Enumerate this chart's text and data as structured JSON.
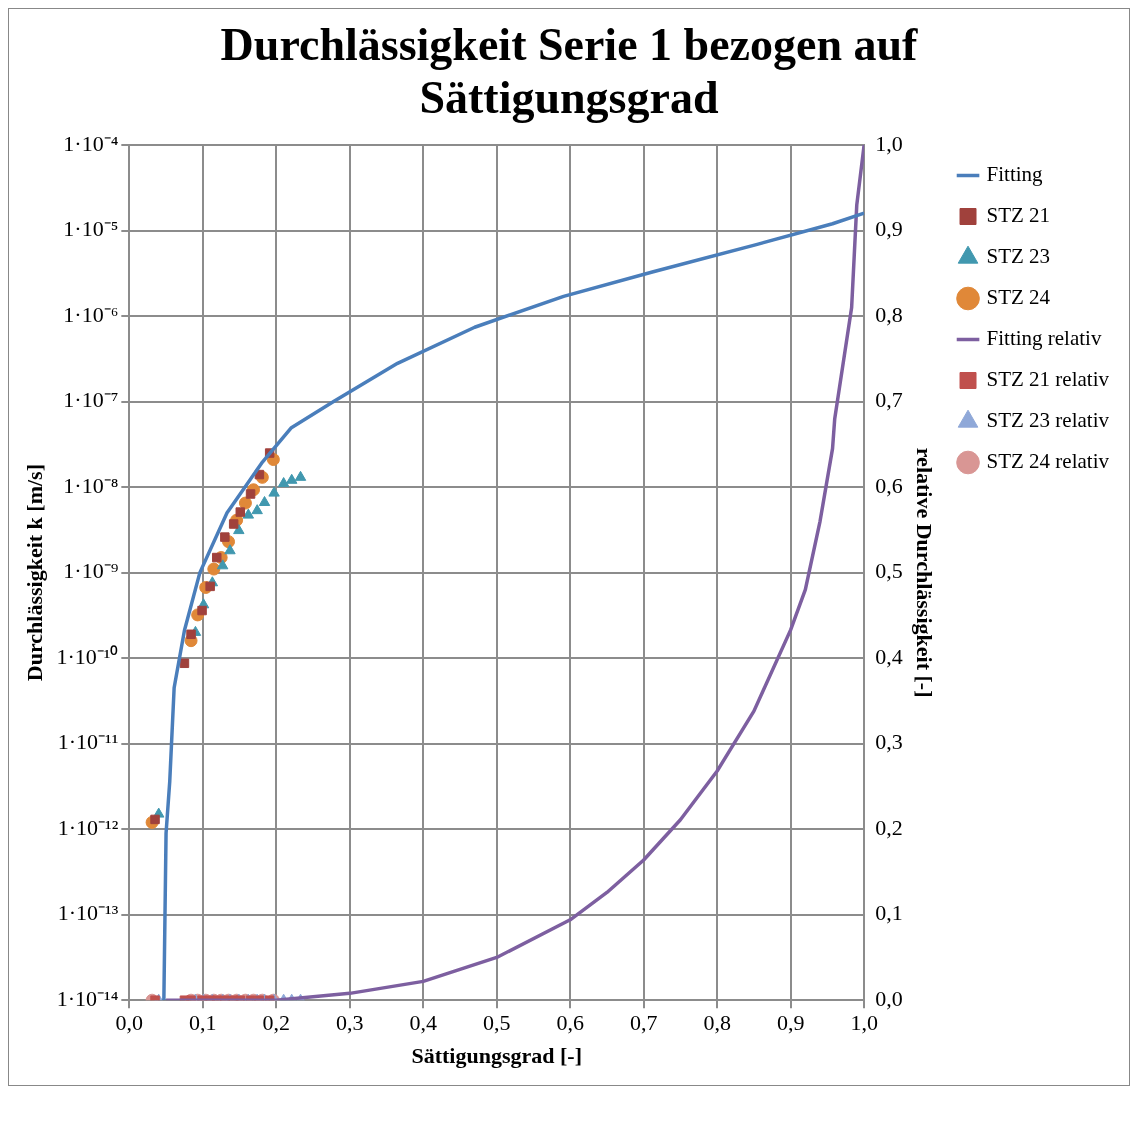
{
  "chart_data": {
    "type": "scatter",
    "title": "Durchlässigkeit Serie 1 bezogen auf Sättigungsgrad",
    "xlabel": "Sättigungsgrad [-]",
    "ylabel": "Durchlässigkeit k [m/s]",
    "y2label": "relative Durchlässigkeit [-]",
    "log": "y",
    "grid": true,
    "legend": "right",
    "xlim": [
      0,
      1
    ],
    "xticks": [
      {
        "value": 0,
        "label": "0,0"
      },
      {
        "value": 0.1,
        "label": "0,1"
      },
      {
        "value": 0.2,
        "label": "0,2"
      },
      {
        "value": 0.3,
        "label": "0,3"
      },
      {
        "value": 0.4,
        "label": "0,4"
      },
      {
        "value": 0.5,
        "label": "0,5"
      },
      {
        "value": 0.6,
        "label": "0,6"
      },
      {
        "value": 0.7,
        "label": "0,7"
      },
      {
        "value": 0.8,
        "label": "0,8"
      },
      {
        "value": 0.9,
        "label": "0,9"
      },
      {
        "value": 1,
        "label": "1,0"
      }
    ],
    "ylim": [
      1e-14,
      0.0001
    ],
    "yticks": [
      {
        "value": 1e-14,
        "label": "1·10⁻¹⁴"
      },
      {
        "value": 1e-13,
        "label": "1·10⁻¹³"
      },
      {
        "value": 1e-12,
        "label": "1·10⁻¹²"
      },
      {
        "value": 1e-11,
        "label": "1·10⁻¹¹"
      },
      {
        "value": 1e-10,
        "label": "1·10⁻¹⁰"
      },
      {
        "value": 1e-09,
        "label": "1·10⁻⁹"
      },
      {
        "value": 1e-08,
        "label": "1·10⁻⁸"
      },
      {
        "value": 1e-07,
        "label": "1·10⁻⁷"
      },
      {
        "value": 1e-06,
        "label": "1·10⁻⁶"
      },
      {
        "value": 1e-05,
        "label": "1·10⁻⁵"
      },
      {
        "value": 0.0001,
        "label": "1·10⁻⁴"
      }
    ],
    "y2lim": [
      0,
      1
    ],
    "y2ticks": [
      {
        "value": 0,
        "label": "0,0"
      },
      {
        "value": 0.1,
        "label": "0,1"
      },
      {
        "value": 0.2,
        "label": "0,2"
      },
      {
        "value": 0.3,
        "label": "0,3"
      },
      {
        "value": 0.4,
        "label": "0,4"
      },
      {
        "value": 0.5,
        "label": "0,5"
      },
      {
        "value": 0.6,
        "label": "0,6"
      },
      {
        "value": 0.7,
        "label": "0,7"
      },
      {
        "value": 0.8,
        "label": "0,8"
      },
      {
        "value": 0.9,
        "label": "0,9"
      },
      {
        "value": 1,
        "label": "1,0"
      }
    ],
    "series": [
      {
        "name": "Fitting",
        "type": "line",
        "marker": "none",
        "color": "#4a7ebb",
        "x": [
          0.047,
          0.05,
          0.055,
          0.061,
          0.075,
          0.096,
          0.133,
          0.18,
          0.22,
          0.278,
          0.365,
          0.47,
          0.591,
          0.713,
          0.852,
          0.957,
          1.0
        ],
        "values": [
          1e-14,
          9e-13,
          3.6e-12,
          4.5e-11,
          2.1e-10,
          1e-09,
          5e-09,
          1.9e-08,
          4.9e-08,
          1e-07,
          2.8e-07,
          7.4e-07,
          1.7e-06,
          3.3e-06,
          6.8e-06,
          1.2e-05,
          1.6e-05
        ]
      },
      {
        "name": "STZ 21",
        "type": "scatter",
        "marker": "square",
        "color": "#a0413c",
        "x": [
          0.035,
          0.075,
          0.084,
          0.099,
          0.11,
          0.119,
          0.13,
          0.142,
          0.151,
          0.165,
          0.177,
          0.191
        ],
        "values": [
          1.3e-12,
          8.7e-11,
          1.9e-10,
          3.6e-10,
          6.9e-10,
          1.5e-09,
          2.6e-09,
          3.7e-09,
          5.1e-09,
          8.3e-09,
          1.4e-08,
          2.5e-08
        ]
      },
      {
        "name": "STZ 23",
        "type": "scatter",
        "marker": "triangle",
        "color": "#4198af",
        "x": [
          0.04,
          0.09,
          0.101,
          0.113,
          0.127,
          0.137,
          0.149,
          0.162,
          0.174,
          0.184,
          0.197,
          0.21,
          0.221,
          0.233
        ],
        "values": [
          1.5e-12,
          2e-10,
          4.2e-10,
          7.6e-10,
          1.2e-09,
          1.8e-09,
          3.1e-09,
          4.7e-09,
          5.3e-09,
          6.6e-09,
          8.5e-09,
          1.1e-08,
          1.2e-08,
          1.3e-08
        ]
      },
      {
        "name": "STZ 24",
        "type": "scatter",
        "marker": "circle",
        "color": "#e08838",
        "x": [
          0.031,
          0.084,
          0.093,
          0.104,
          0.115,
          0.125,
          0.135,
          0.146,
          0.158,
          0.169,
          0.181,
          0.196
        ],
        "values": [
          1.2e-12,
          1.6e-10,
          3.2e-10,
          6.7e-10,
          1.1e-09,
          1.5e-09,
          2.3e-09,
          4.1e-09,
          6.5e-09,
          9.3e-09,
          1.3e-08,
          2.1e-08
        ]
      },
      {
        "name": "Fitting relativ",
        "type": "line",
        "marker": "none",
        "axis": "y2",
        "color": "#7d5fa0",
        "x": [
          0.05,
          0.2,
          0.3,
          0.4,
          0.5,
          0.6,
          0.65,
          0.7,
          0.75,
          0.8,
          0.85,
          0.9,
          0.92,
          0.94,
          0.957,
          0.96,
          0.983,
          0.99,
          1.0
        ],
        "values": [
          0,
          0,
          0.008,
          0.022,
          0.05,
          0.094,
          0.126,
          0.164,
          0.211,
          0.268,
          0.338,
          0.433,
          0.48,
          0.56,
          0.645,
          0.68,
          0.81,
          0.93,
          1.0
        ]
      },
      {
        "name": "STZ 21 relativ",
        "type": "scatter",
        "marker": "square",
        "axis": "y2",
        "color": "#c0504d",
        "x": [
          0.035,
          0.075,
          0.084,
          0.099,
          0.11,
          0.119,
          0.13,
          0.142,
          0.151,
          0.165,
          0.177,
          0.191
        ],
        "values": [
          0,
          0,
          0,
          0,
          0,
          0,
          0,
          0,
          0,
          0,
          0,
          0
        ]
      },
      {
        "name": "STZ 23 relativ",
        "type": "scatter",
        "marker": "triangle",
        "axis": "y2",
        "color": "#8fa8d8",
        "x": [
          0.04,
          0.09,
          0.101,
          0.113,
          0.127,
          0.137,
          0.149,
          0.162,
          0.174,
          0.184,
          0.197,
          0.21,
          0.221,
          0.233
        ],
        "values": [
          0,
          0,
          0,
          0,
          0,
          0,
          0,
          0,
          0,
          0,
          0,
          0,
          0,
          0
        ]
      },
      {
        "name": "STZ 24 relativ",
        "type": "scatter",
        "marker": "circle",
        "axis": "y2",
        "color": "#d99694",
        "x": [
          0.031,
          0.084,
          0.093,
          0.104,
          0.115,
          0.125,
          0.135,
          0.146,
          0.158,
          0.169,
          0.181,
          0.196
        ],
        "values": [
          0,
          0,
          0,
          0,
          0,
          0,
          0,
          0,
          0,
          0,
          0,
          0
        ]
      }
    ]
  }
}
